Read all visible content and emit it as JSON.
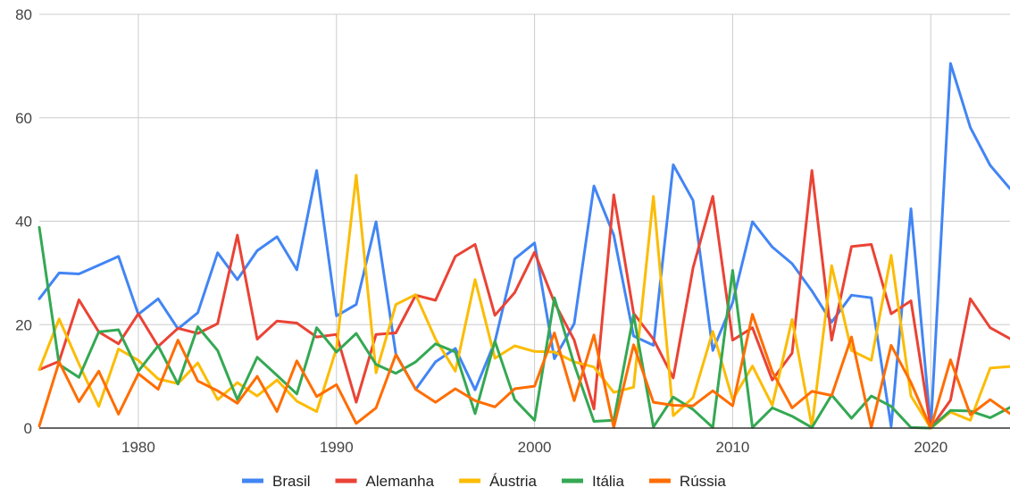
{
  "chart_data": {
    "type": "line",
    "x": [
      1975,
      1976,
      1977,
      1978,
      1979,
      1980,
      1981,
      1982,
      1983,
      1984,
      1985,
      1986,
      1987,
      1988,
      1989,
      1990,
      1991,
      1992,
      1993,
      1994,
      1995,
      1996,
      1997,
      1998,
      1999,
      2000,
      2001,
      2002,
      2003,
      2004,
      2005,
      2006,
      2007,
      2008,
      2009,
      2010,
      2011,
      2012,
      2013,
      2014,
      2015,
      2016,
      2017,
      2018,
      2019,
      2020,
      2021,
      2022,
      2023,
      2024
    ],
    "xlim": [
      1975,
      2024
    ],
    "ylim": [
      0,
      80
    ],
    "x_ticks": [
      1980,
      1990,
      2000,
      2010,
      2020
    ],
    "y_ticks": [
      0,
      20,
      40,
      60,
      80
    ],
    "grid": true,
    "legend_position": "bottom",
    "series": [
      {
        "name": "Brasil",
        "color": "#4285F4",
        "values": [
          25,
          30,
          29.8,
          31.5,
          33.2,
          22,
          25,
          19.2,
          22.3,
          33.9,
          28.7,
          34.3,
          37,
          30.6,
          49.8,
          21.7,
          23.9,
          39.9,
          14.3,
          7.5,
          12.8,
          15.4,
          7.4,
          16.7,
          32.7,
          35.8,
          13.4,
          20.2,
          46.8,
          37.3,
          17.8,
          16,
          50.9,
          44,
          15,
          24.3,
          39.9,
          35,
          31.8,
          26.5,
          20.5,
          25.7,
          25.2,
          0.3,
          42.4,
          0,
          70.5,
          58.1,
          50.8,
          46.3
        ]
      },
      {
        "name": "Alemanha",
        "color": "#EA4335",
        "values": [
          11.3,
          12.9,
          24.8,
          18.6,
          16.3,
          22.1,
          15.8,
          19.3,
          18.3,
          20.2,
          37.3,
          17.2,
          20.7,
          20.3,
          17.6,
          18.1,
          5,
          18.1,
          18.4,
          25.7,
          24.7,
          33.2,
          35.5,
          21.8,
          26.2,
          34,
          24.3,
          17,
          3.7,
          45.1,
          22.2,
          17.2,
          9.7,
          31,
          44.8,
          17,
          19.4,
          9.3,
          14.5,
          49.8,
          17,
          35.1,
          35.5,
          22.1,
          24.6,
          0,
          5.4,
          25,
          19.4,
          17.3
        ]
      },
      {
        "name": "Áustria",
        "color": "#FBBC04",
        "values": [
          11.3,
          21.1,
          12.4,
          4.2,
          15.3,
          13.1,
          9.5,
          8.6,
          12.6,
          5.5,
          8.8,
          6.2,
          9.3,
          5.2,
          3.2,
          15.4,
          48.9,
          10.7,
          23.9,
          25.8,
          17.2,
          11,
          28.7,
          13.5,
          15.9,
          14.8,
          14.7,
          12.8,
          11.8,
          6.9,
          7.9,
          44.8,
          2.4,
          5.9,
          18.7,
          5.5,
          12,
          4.4,
          21,
          0.3,
          31.4,
          15,
          13.1,
          33.4,
          6.2,
          0,
          3.1,
          1.5,
          11.6,
          11.9
        ]
      },
      {
        "name": "Itália",
        "color": "#34A853",
        "values": [
          38.8,
          12.3,
          9.8,
          18.6,
          19,
          11,
          15.9,
          8.5,
          19.6,
          15,
          5.5,
          13.7,
          10.2,
          6.6,
          19.4,
          14.7,
          18.3,
          12.3,
          10.6,
          12.8,
          16.3,
          14.7,
          2.8,
          16.8,
          5.5,
          1.5,
          25.2,
          12.3,
          1.3,
          1.5,
          21.9,
          0.2,
          6,
          3.6,
          0.1,
          30.5,
          0.1,
          3.9,
          2.3,
          0.1,
          6.4,
          1.9,
          6.2,
          4.2,
          0.1,
          0,
          3.4,
          3.3,
          2,
          4
        ]
      },
      {
        "name": "Rússia",
        "color": "#FF6D01",
        "values": [
          0.4,
          12.8,
          5.1,
          11,
          2.7,
          10.5,
          7.5,
          17,
          9.1,
          7.2,
          4.8,
          10,
          3.2,
          13,
          6.1,
          8.4,
          0.9,
          3.9,
          14.2,
          7.5,
          5,
          7.6,
          5.3,
          4.1,
          7.6,
          8.1,
          18.4,
          5.3,
          18,
          0.1,
          16.1,
          5,
          4.4,
          4.3,
          7.2,
          4.3,
          22,
          10.9,
          3.9,
          7.1,
          6.3,
          17.6,
          0.1,
          16,
          8.8,
          0,
          13.2,
          2.6,
          5.5,
          2.8
        ]
      }
    ]
  }
}
